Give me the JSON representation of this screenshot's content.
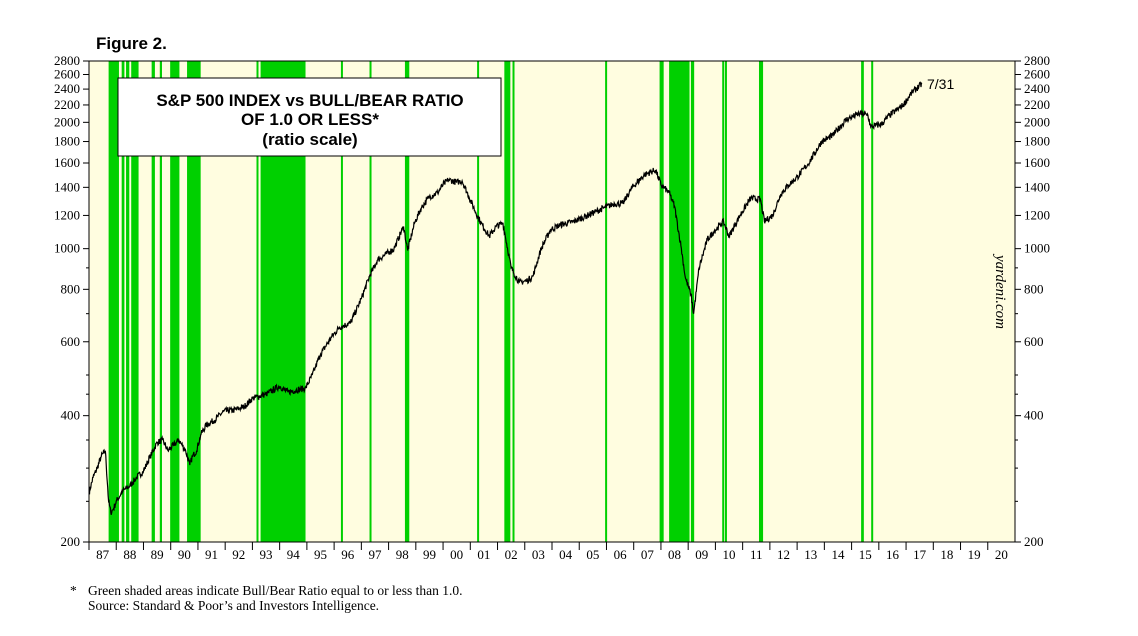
{
  "figure_label": "Figure 2.",
  "chart_data": {
    "type": "line",
    "title_lines": [
      "S&P 500 INDEX vs BULL/BEAR RATIO",
      "OF 1.0 OR LESS*",
      "(ratio scale)"
    ],
    "y_scale": "log",
    "ylim": [
      200,
      2800
    ],
    "y_ticks": [
      200,
      400,
      600,
      800,
      1000,
      1200,
      1400,
      1600,
      1800,
      2000,
      2200,
      2400,
      2600,
      2800
    ],
    "y_tick_labels": [
      "200",
      "400",
      "600",
      "800",
      "1000",
      "1200",
      "1400",
      "1600",
      "1800",
      "2000",
      "2200",
      "2400",
      "2600",
      "2800"
    ],
    "xlim": [
      1987.0,
      2021.0
    ],
    "year_labels": [
      "87",
      "88",
      "89",
      "90",
      "91",
      "92",
      "93",
      "94",
      "95",
      "96",
      "97",
      "98",
      "99",
      "00",
      "01",
      "02",
      "03",
      "04",
      "05",
      "06",
      "07",
      "08",
      "09",
      "10",
      "11",
      "12",
      "13",
      "14",
      "15",
      "16",
      "17",
      "18",
      "19",
      "20"
    ],
    "grid": false,
    "background_color": "#fffde0",
    "shading_color": "#00d000",
    "line_color": "#000000",
    "end_label": "7/31",
    "watermark": "yardeni.com",
    "series": [
      {
        "x": [
          1987.0,
          1987.15,
          1987.3,
          1987.45,
          1987.6,
          1987.72,
          1987.8,
          1987.9,
          1988.0,
          1988.25,
          1988.5,
          1988.75,
          1989.0,
          1989.25,
          1989.5,
          1989.7,
          1989.9,
          1990.1,
          1990.3,
          1990.55,
          1990.7,
          1990.8,
          1990.95,
          1991.1,
          1991.3,
          1991.6,
          1991.95,
          1992.3,
          1992.7,
          1993.0,
          1993.5,
          1994.0,
          1994.3,
          1994.6,
          1994.95,
          1995.2,
          1995.5,
          1995.9,
          1996.2,
          1996.6,
          1997.0,
          1997.3,
          1997.6,
          1997.9,
          1998.2,
          1998.55,
          1998.7,
          1998.95,
          1999.2,
          1999.5,
          1999.8,
          2000.0,
          2000.2,
          2000.5,
          2000.7,
          2000.95,
          2001.2,
          2001.4,
          2001.7,
          2001.95,
          2002.2,
          2002.5,
          2002.8,
          2003.1,
          2003.3,
          2003.6,
          2003.95,
          2004.3,
          2004.8,
          2005.3,
          2005.9,
          2006.3,
          2006.6,
          2006.95,
          2007.4,
          2007.8,
          2008.0,
          2008.3,
          2008.5,
          2008.75,
          2008.9,
          2009.1,
          2009.2,
          2009.4,
          2009.7,
          2009.95,
          2010.3,
          2010.5,
          2010.9,
          2011.3,
          2011.65,
          2011.8,
          2012.1,
          2012.4,
          2012.7,
          2013.0,
          2013.4,
          2013.9,
          2014.3,
          2014.8,
          2015.3,
          2015.6,
          2015.7,
          2016.1,
          2016.4,
          2016.9,
          2017.2,
          2017.58
        ],
        "y": [
          262,
          285,
          300,
          320,
          330,
          250,
          235,
          240,
          250,
          265,
          272,
          285,
          295,
          320,
          345,
          350,
          330,
          340,
          350,
          330,
          305,
          320,
          330,
          360,
          380,
          390,
          410,
          412,
          420,
          440,
          450,
          470,
          455,
          460,
          465,
          500,
          560,
          615,
          650,
          665,
          760,
          860,
          940,
          970,
          1000,
          1130,
          990,
          1150,
          1250,
          1330,
          1360,
          1420,
          1460,
          1440,
          1450,
          1330,
          1220,
          1150,
          1070,
          1130,
          1150,
          900,
          830,
          840,
          860,
          1000,
          1110,
          1140,
          1160,
          1200,
          1250,
          1280,
          1280,
          1400,
          1500,
          1540,
          1420,
          1360,
          1260,
          1000,
          850,
          780,
          700,
          900,
          1050,
          1100,
          1160,
          1070,
          1200,
          1320,
          1310,
          1160,
          1200,
          1350,
          1420,
          1480,
          1590,
          1800,
          1860,
          2030,
          2100,
          2080,
          1950,
          1980,
          2080,
          2200,
          2350,
          2470
        ]
      }
    ],
    "shaded_periods": [
      [
        1987.72,
        1988.1
      ],
      [
        1988.2,
        1988.3
      ],
      [
        1988.36,
        1988.48
      ],
      [
        1988.55,
        1988.82
      ],
      [
        1989.3,
        1989.42
      ],
      [
        1989.6,
        1989.68
      ],
      [
        1989.98,
        1990.32
      ],
      [
        1990.6,
        1991.1
      ],
      [
        1993.15,
        1993.22
      ],
      [
        1993.3,
        1994.95
      ],
      [
        1996.25,
        1996.3
      ],
      [
        1997.3,
        1997.37
      ],
      [
        1998.6,
        1998.76
      ],
      [
        2001.25,
        2001.3
      ],
      [
        2002.25,
        2002.47
      ],
      [
        2002.55,
        2002.62
      ],
      [
        2005.95,
        2006.02
      ],
      [
        2007.95,
        2008.1
      ],
      [
        2008.3,
        2009.05
      ],
      [
        2009.1,
        2009.22
      ],
      [
        2010.25,
        2010.3
      ],
      [
        2010.35,
        2010.4
      ],
      [
        2011.6,
        2011.75
      ],
      [
        2015.35,
        2015.45
      ],
      [
        2015.72,
        2015.78
      ]
    ],
    "footnote": "Green shaded areas indicate Bull/Bear Ratio equal to or less than 1.0.",
    "source": "Source: Standard & Poor’s and Investors Intelligence."
  }
}
